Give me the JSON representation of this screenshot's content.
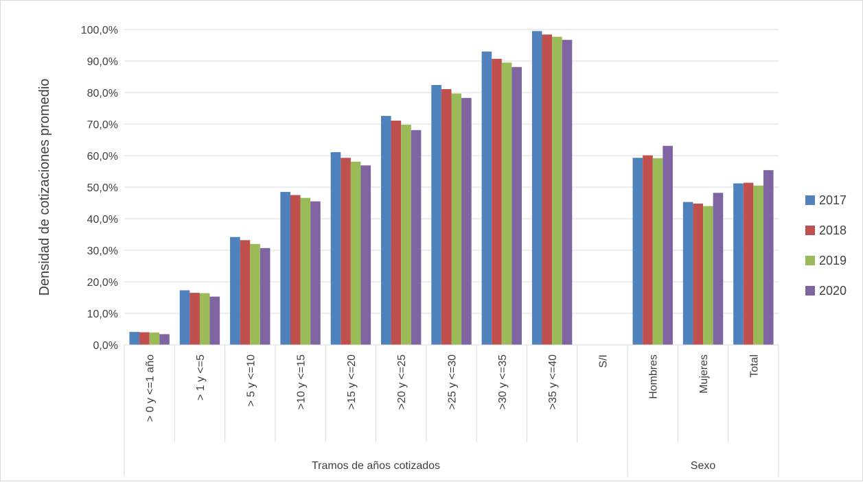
{
  "chart_data": {
    "type": "bar",
    "title": "",
    "ylabel": "Densidad de cotizaciones promedio",
    "ylim": [
      0,
      100
    ],
    "y_ticks": [
      "0,0%",
      "10,0%",
      "20,0%",
      "30,0%",
      "40,0%",
      "50,0%",
      "60,0%",
      "70,0%",
      "80,0%",
      "90,0%",
      "100,0%"
    ],
    "categories": [
      "> 0 y <=1 año",
      "> 1 y <=5",
      "> 5 y <=10",
      ">10 y <=15",
      ">15 y <=20",
      ">20 y <=25",
      ">25 y <=30",
      ">30 y <=35",
      ">35 y <=40",
      "S/I",
      "Hombres",
      "Mujeres",
      "Total"
    ],
    "groups": [
      {
        "label": "Tramos de años cotizados",
        "count": 10
      },
      {
        "label": "Sexo",
        "count": 3
      }
    ],
    "series": [
      {
        "name": "2017",
        "color": "#4f81bd",
        "values": [
          4.1,
          17.3,
          34.2,
          48.5,
          61.1,
          72.6,
          82.4,
          93.0,
          99.5,
          null,
          59.3,
          45.3,
          51.2
        ]
      },
      {
        "name": "2018",
        "color": "#c0504d",
        "values": [
          4.0,
          16.5,
          33.2,
          47.5,
          59.3,
          71.1,
          81.1,
          90.7,
          98.4,
          null,
          60.1,
          44.8,
          51.4
        ]
      },
      {
        "name": "2019",
        "color": "#9bbb59",
        "values": [
          3.9,
          16.4,
          32.0,
          46.6,
          58.1,
          69.8,
          79.7,
          89.5,
          97.7,
          null,
          59.2,
          44.0,
          50.5
        ]
      },
      {
        "name": "2020",
        "color": "#8064a2",
        "values": [
          3.4,
          15.3,
          30.7,
          45.5,
          56.9,
          68.1,
          78.3,
          88.1,
          96.7,
          null,
          63.1,
          48.2,
          55.4
        ]
      }
    ],
    "grid": true,
    "legend_position": "right"
  }
}
